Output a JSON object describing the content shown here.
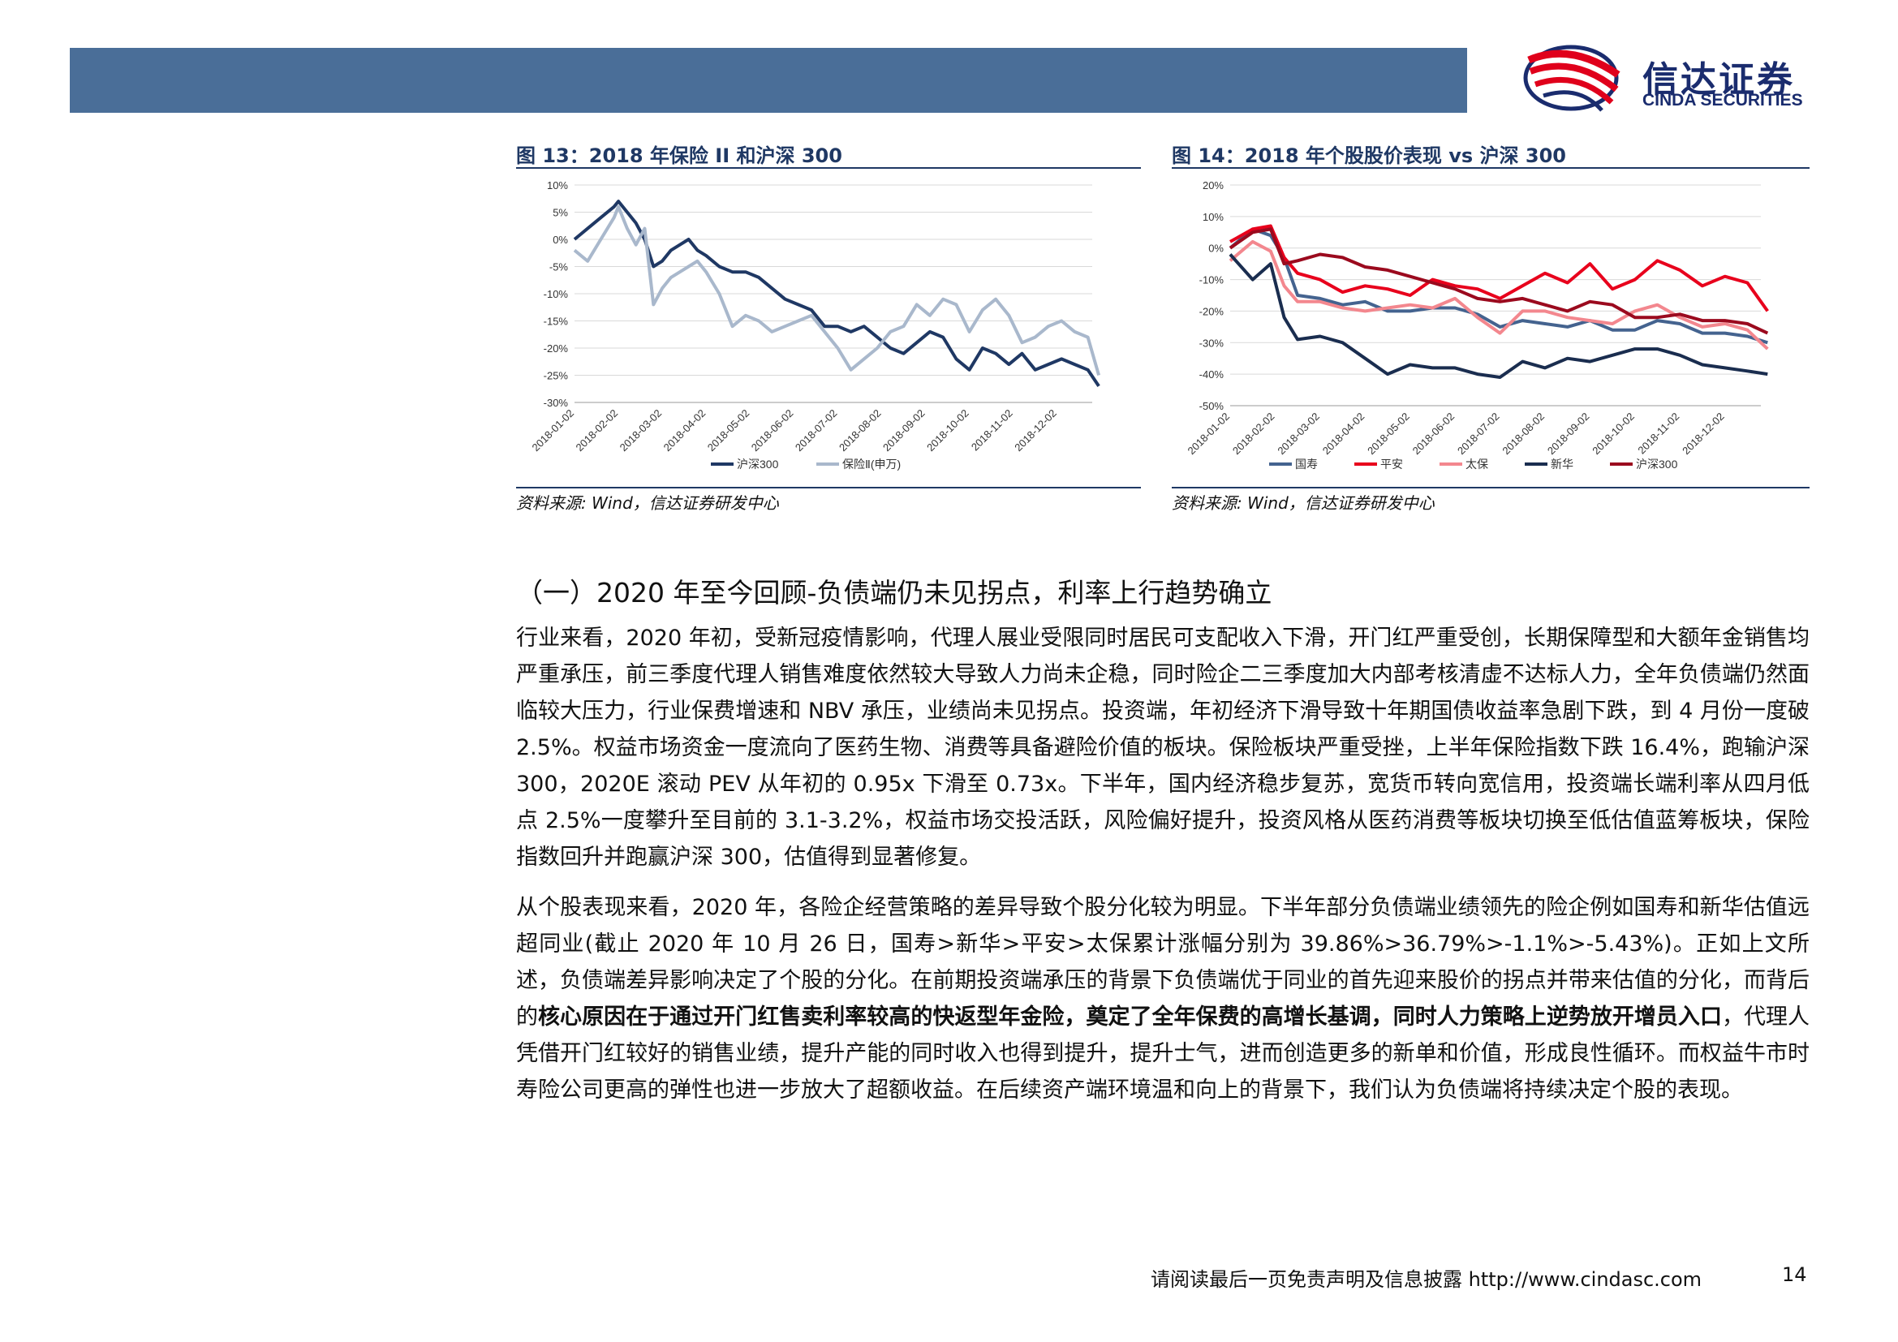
{
  "header": {
    "brand_cn": "信达证券",
    "brand_en": "CINDA SECURITIES",
    "bar_color": "#4a6e98"
  },
  "figure13": {
    "title": "图 13：2018 年保险 II 和沪深 300",
    "source": "资料来源: Wind，信达证券研发中心",
    "chart_data": {
      "type": "line",
      "x_ticks": [
        "2018-01-02",
        "2018-02-02",
        "2018-03-02",
        "2018-04-02",
        "2018-05-02",
        "2018-06-02",
        "2018-07-02",
        "2018-08-02",
        "2018-09-02",
        "2018-10-02",
        "2018-11-02",
        "2018-12-02"
      ],
      "y_ticks": [
        "10%",
        "5%",
        "0%",
        "-5%",
        "-10%",
        "-15%",
        "-20%",
        "-25%",
        "-30%"
      ],
      "ylim": [
        -30,
        10
      ],
      "grid": true,
      "legend_position": "bottom",
      "series": [
        {
          "name": "沪深300",
          "color": "#1f3864",
          "x": [
            0,
            0.3,
            0.6,
            0.9,
            1.0,
            1.2,
            1.4,
            1.6,
            1.8,
            2.0,
            2.2,
            2.4,
            2.6,
            2.8,
            3.0,
            3.3,
            3.6,
            3.9,
            4.2,
            4.5,
            4.8,
            5.1,
            5.4,
            5.7,
            6.0,
            6.3,
            6.6,
            6.9,
            7.2,
            7.5,
            7.8,
            8.1,
            8.4,
            8.7,
            9.0,
            9.3,
            9.6,
            9.9,
            10.2,
            10.5,
            10.8,
            11.1,
            11.4,
            11.7,
            11.95
          ],
          "values": [
            0,
            2,
            4,
            6,
            7,
            5,
            3,
            0,
            -5,
            -4,
            -2,
            -1,
            0,
            -2,
            -3,
            -5,
            -6,
            -6,
            -7,
            -9,
            -11,
            -12,
            -13,
            -16,
            -16,
            -17,
            -16,
            -18,
            -20,
            -21,
            -19,
            -17,
            -18,
            -22,
            -24,
            -20,
            -21,
            -23,
            -21,
            -24,
            -23,
            -22,
            -23,
            -24,
            -27
          ]
        },
        {
          "name": "保险Ⅱ(申万)",
          "color": "#a9b8cc",
          "x": [
            0,
            0.3,
            0.6,
            0.9,
            1.0,
            1.2,
            1.4,
            1.6,
            1.8,
            2.0,
            2.2,
            2.4,
            2.6,
            2.8,
            3.0,
            3.3,
            3.6,
            3.9,
            4.2,
            4.5,
            4.8,
            5.1,
            5.4,
            5.7,
            6.0,
            6.3,
            6.6,
            6.9,
            7.2,
            7.5,
            7.8,
            8.1,
            8.4,
            8.7,
            9.0,
            9.3,
            9.6,
            9.9,
            10.2,
            10.5,
            10.8,
            11.1,
            11.4,
            11.7,
            11.95
          ],
          "values": [
            -2,
            -4,
            0,
            4,
            6,
            2,
            -1,
            2,
            -12,
            -9,
            -7,
            -6,
            -5,
            -4,
            -6,
            -10,
            -16,
            -14,
            -15,
            -17,
            -16,
            -15,
            -14,
            -17,
            -20,
            -24,
            -22,
            -20,
            -17,
            -16,
            -12,
            -14,
            -11,
            -12,
            -17,
            -13,
            -11,
            -14,
            -19,
            -18,
            -16,
            -15,
            -17,
            -18,
            -25
          ]
        }
      ]
    }
  },
  "figure14": {
    "title": "图 14：2018 年个股股价表现 vs 沪深 300",
    "source": "资料来源: Wind，信达证券研发中心",
    "chart_data": {
      "type": "line",
      "x_ticks": [
        "2018-01-02",
        "2018-02-02",
        "2018-03-02",
        "2018-04-02",
        "2018-05-02",
        "2018-06-02",
        "2018-07-02",
        "2018-08-02",
        "2018-09-02",
        "2018-10-02",
        "2018-11-02",
        "2018-12-02"
      ],
      "y_ticks": [
        "20%",
        "10%",
        "0%",
        "-10%",
        "-20%",
        "-30%",
        "-40%",
        "-50%"
      ],
      "ylim": [
        -50,
        20
      ],
      "grid": true,
      "legend_position": "bottom",
      "series": [
        {
          "name": "国寿",
          "color": "#44638f",
          "x": [
            0,
            0.5,
            0.9,
            1.2,
            1.5,
            2.0,
            2.5,
            3.0,
            3.5,
            4.0,
            4.5,
            5.0,
            5.5,
            6.0,
            6.5,
            7.0,
            7.5,
            8.0,
            8.5,
            9.0,
            9.5,
            10.0,
            10.5,
            11.0,
            11.5,
            11.95
          ],
          "values": [
            0,
            6,
            4,
            -3,
            -15,
            -16,
            -18,
            -17,
            -20,
            -20,
            -19,
            -19,
            -21,
            -25,
            -23,
            -24,
            -25,
            -23,
            -26,
            -26,
            -23,
            -24,
            -27,
            -27,
            -28,
            -30
          ]
        },
        {
          "name": "平安",
          "color": "#e8001c",
          "x": [
            0,
            0.5,
            0.9,
            1.2,
            1.5,
            2.0,
            2.5,
            3.0,
            3.5,
            4.0,
            4.5,
            5.0,
            5.5,
            6.0,
            6.5,
            7.0,
            7.5,
            8.0,
            8.5,
            9.0,
            9.5,
            10.0,
            10.5,
            11.0,
            11.5,
            11.95
          ],
          "values": [
            2,
            6,
            7,
            -3,
            -8,
            -10,
            -14,
            -12,
            -13,
            -15,
            -10,
            -12,
            -13,
            -16,
            -12,
            -8,
            -11,
            -5,
            -13,
            -10,
            -4,
            -7,
            -12,
            -9,
            -11,
            -20
          ]
        },
        {
          "name": "太保",
          "color": "#f3878e",
          "x": [
            0,
            0.5,
            0.9,
            1.2,
            1.5,
            2.0,
            2.5,
            3.0,
            3.5,
            4.0,
            4.5,
            5.0,
            5.5,
            6.0,
            6.5,
            7.0,
            7.5,
            8.0,
            8.5,
            9.0,
            9.5,
            10.0,
            10.5,
            11.0,
            11.5,
            11.95
          ],
          "values": [
            -4,
            2,
            -1,
            -12,
            -17,
            -17,
            -19,
            -20,
            -19,
            -18,
            -19,
            -16,
            -22,
            -27,
            -20,
            -20,
            -22,
            -23,
            -24,
            -20,
            -18,
            -22,
            -25,
            -24,
            -26,
            -32
          ]
        },
        {
          "name": "新华",
          "color": "#1a2d4f",
          "x": [
            0,
            0.5,
            0.9,
            1.2,
            1.5,
            2.0,
            2.5,
            3.0,
            3.5,
            4.0,
            4.5,
            5.0,
            5.5,
            6.0,
            6.5,
            7.0,
            7.5,
            8.0,
            8.5,
            9.0,
            9.5,
            10.0,
            10.5,
            11.0,
            11.5,
            11.95
          ],
          "values": [
            -2,
            -10,
            -5,
            -22,
            -29,
            -28,
            -30,
            -35,
            -40,
            -37,
            -38,
            -38,
            -40,
            -41,
            -36,
            -38,
            -35,
            -36,
            -34,
            -32,
            -32,
            -34,
            -37,
            -38,
            -39,
            -40
          ]
        },
        {
          "name": "沪深300",
          "color": "#9b0a1e",
          "x": [
            0,
            0.5,
            0.9,
            1.2,
            1.5,
            2.0,
            2.5,
            3.0,
            3.5,
            4.0,
            4.5,
            5.0,
            5.5,
            6.0,
            6.5,
            7.0,
            7.5,
            8.0,
            8.5,
            9.0,
            9.5,
            10.0,
            10.5,
            11.0,
            11.5,
            11.95
          ],
          "values": [
            0,
            5,
            6,
            -5,
            -4,
            -2,
            -3,
            -6,
            -7,
            -9,
            -11,
            -13,
            -16,
            -17,
            -16,
            -18,
            -20,
            -17,
            -18,
            -22,
            -22,
            -21,
            -23,
            -23,
            -24,
            -27
          ]
        }
      ]
    }
  },
  "section": {
    "title": "（一）2020 年至今回顾-负债端仍未见拐点，利率上行趋势确立"
  },
  "para1": "行业来看，2020 年初，受新冠疫情影响，代理人展业受限同时居民可支配收入下滑，开门红严重受创，长期保障型和大额年金销售均严重承压，前三季度代理人销售难度依然较大导致人力尚未企稳，同时险企二三季度加大内部考核清虚不达标人力，全年负债端仍然面临较大压力，行业保费增速和 NBV 承压，业绩尚未见拐点。投资端，年初经济下滑导致十年期国债收益率急剧下跌，到 4 月份一度破 2.5%。权益市场资金一度流向了医药生物、消费等具备避险价值的板块。保险板块严重受挫，上半年保险指数下跌 16.4%，跑输沪深 300，2020E 滚动 PEV 从年初的 0.95x 下滑至 0.73x。下半年，国内经济稳步复苏，宽货币转向宽信用，投资端长端利率从四月低点 2.5%一度攀升至目前的 3.1-3.2%，权益市场交投活跃，风险偏好提升，投资风格从医药消费等板块切换至低估值蓝筹板块，保险指数回升并跑赢沪深 300，估值得到显著修复。",
  "para2": {
    "part1": "从个股表现来看，2020 年，各险企经营策略的差异导致个股分化较为明显。下半年部分负债端业绩领先的险企例如国寿和新华估值远超同业(截止 2020 年 10 月 26 日，国寿>新华>平安>太保累计涨幅分别为 39.86%>36.79%>-1.1%>-5.43%)。正如上文所述，负债端差异影响决定了个股的分化。在前期投资端承压的背景下负债端优于同业的首先迎来股价的拐点并带来估值的分化，而背后的",
    "bold": "核心原因在于通过开门红售卖利率较高的快返型年金险，奠定了全年保费的高增长基调，同时人力策略上逆势放开增员入口",
    "part2": "，代理人凭借开门红较好的销售业绩，提升产能的同时收入也得到提升，提升士气，进而创造更多的新单和价值，形成良性循环。而权益牛市时寿险公司更高的弹性也进一步放大了超额收益。在后续资产端环境温和向上的背景下，我们认为负债端将持续决定个股的表现。"
  },
  "footer": {
    "disclaimer": "请阅读最后一页免责声明及信息披露 http://www.cindasc.com",
    "page_number": "14"
  }
}
